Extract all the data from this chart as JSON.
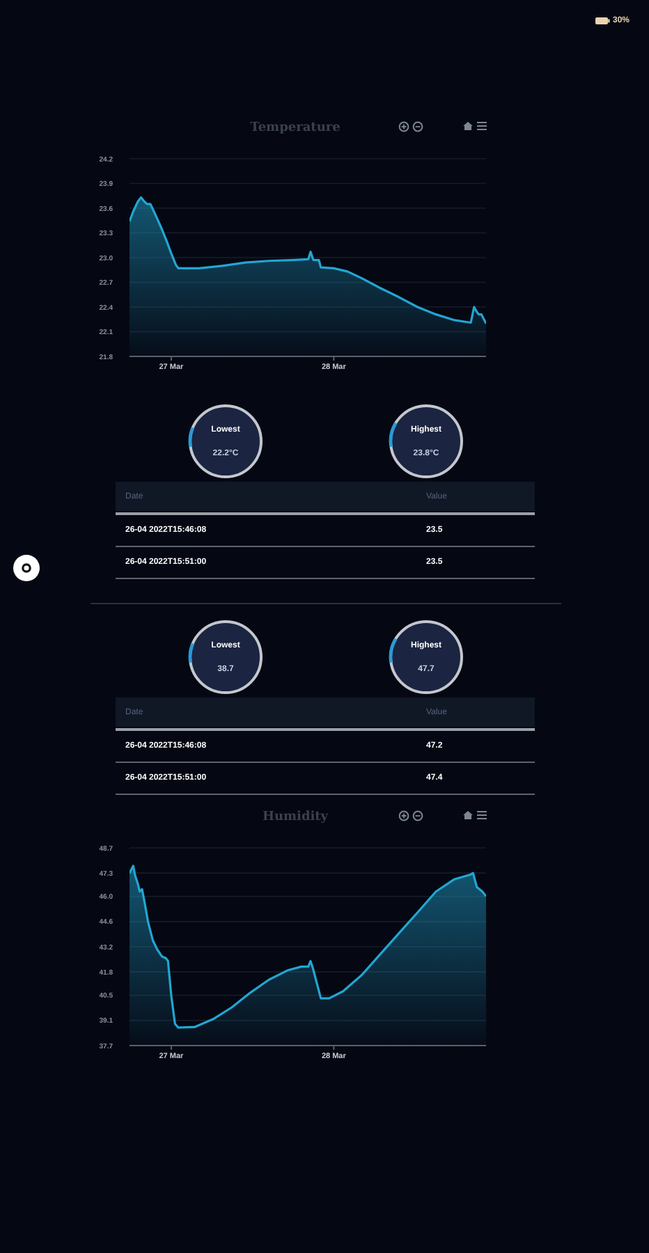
{
  "chart_data": [
    {
      "type": "other",
      "annotations": [
        "30%"
      ]
    },
    {
      "type": "area",
      "title": "Temperature",
      "x": [
        "2022-03-26T17:50",
        "2022-03-26T18:23",
        "2022-03-26T19:04",
        "2022-03-26T19:32",
        "2022-03-26T20:01",
        "2022-03-26T20:26",
        "2022-03-26T20:55",
        "2022-03-26T21:16",
        "2022-03-26T21:56",
        "2022-03-26T22:38",
        "2022-03-26T23:19",
        "2022-03-27T00:00",
        "2022-03-27T00:41",
        "2022-03-27T01:02",
        "2022-03-27T04:07",
        "2022-03-27T07:33",
        "2022-03-27T10:58",
        "2022-03-27T14:24",
        "2022-03-27T17:50",
        "2022-03-27T20:14",
        "2022-03-27T20:34",
        "2022-03-27T20:59",
        "2022-03-27T21:48",
        "2022-03-27T22:05",
        "2022-03-28T00:00",
        "2022-03-28T02:03",
        "2022-03-28T04:07",
        "2022-03-28T06:51",
        "2022-03-28T09:36",
        "2022-03-28T12:21",
        "2022-03-28T15:05",
        "2022-03-28T17:50",
        "2022-03-28T20:14",
        "2022-03-28T20:43",
        "2022-03-28T21:07",
        "2022-03-28T21:24",
        "2022-03-28T21:48",
        "2022-03-28T22:29"
      ],
      "values": [
        23.44,
        23.56,
        23.68,
        23.73,
        23.68,
        23.65,
        23.65,
        23.59,
        23.47,
        23.34,
        23.2,
        23.05,
        22.91,
        22.87,
        22.87,
        22.9,
        22.94,
        22.96,
        22.97,
        22.98,
        23.07,
        22.97,
        22.97,
        22.88,
        22.87,
        22.83,
        22.75,
        22.63,
        22.52,
        22.4,
        22.31,
        22.24,
        22.21,
        22.4,
        22.34,
        22.31,
        22.31,
        22.2
      ],
      "color": "#22a6d2",
      "xlim": [
        "2022-03-26T17:50",
        "2022-03-28T22:29"
      ],
      "xticks": [
        {
          "value": "2022-03-27",
          "label": "27 Mar"
        },
        {
          "value": "2022-03-28",
          "label": "28 Mar"
        }
      ],
      "ylim": [
        21.8,
        24.2
      ],
      "yticks": [
        21.8,
        22.1,
        22.4,
        22.7,
        {
          "value": 23,
          "label": "23.0"
        },
        23.3,
        23.6,
        23.9,
        24.2
      ],
      "grid": "y"
    },
    {
      "type": "other",
      "annotations": [
        "Lowest",
        "22.2°C",
        "Highest",
        "23.8°C",
        "Date",
        "Value",
        "26-04 2022T15:46:08",
        "23.5",
        "26-04 2022T15:51:00",
        "23.5"
      ]
    },
    {
      "type": "other",
      "annotations": [
        "Lowest",
        "38.7",
        "Highest",
        "47.7",
        "Date",
        "Value",
        "26-04 2022T15:46:08",
        "47.2",
        "26-04 2022T15:51:00",
        "47.4"
      ]
    },
    {
      "type": "area",
      "title": "Humidity",
      "x": [
        "2022-03-26T17:50",
        "2022-03-26T18:23",
        "2022-03-26T18:39",
        "2022-03-26T19:04",
        "2022-03-26T19:20",
        "2022-03-26T19:41",
        "2022-03-26T20:01",
        "2022-03-26T20:34",
        "2022-03-26T21:16",
        "2022-03-26T21:56",
        "2022-03-26T22:38",
        "2022-03-26T23:11",
        "2022-03-26T23:31",
        "2022-03-27T00:00",
        "2022-03-27T00:33",
        "2022-03-27T01:02",
        "2022-03-27T03:26",
        "2022-03-27T06:10",
        "2022-03-27T08:55",
        "2022-03-27T11:40",
        "2022-03-27T14:24",
        "2022-03-27T17:09",
        "2022-03-27T19:12",
        "2022-03-27T20:14",
        "2022-03-27T20:34",
        "2022-03-27T20:55",
        "2022-03-27T22:05",
        "2022-03-27T23:19",
        "2022-03-28T01:22",
        "2022-03-28T04:07",
        "2022-03-28T06:51",
        "2022-03-28T09:36",
        "2022-03-28T12:21",
        "2022-03-28T15:05",
        "2022-03-28T17:50",
        "2022-03-28T20:14",
        "2022-03-28T20:34",
        "2022-03-28T21:07",
        "2022-03-28T21:56",
        "2022-03-28T22:29"
      ],
      "values": [
        47.3,
        47.7,
        47.17,
        46.7,
        46.27,
        46.4,
        45.75,
        44.59,
        43.56,
        43.04,
        42.65,
        42.57,
        42.4,
        40.46,
        38.91,
        38.7,
        38.73,
        39.17,
        39.82,
        40.64,
        41.36,
        41.88,
        42.09,
        42.09,
        42.4,
        42.0,
        40.33,
        40.33,
        40.72,
        41.62,
        42.78,
        43.94,
        45.1,
        46.27,
        46.96,
        47.22,
        47.3,
        46.52,
        46.27,
        46.01
      ],
      "color": "#22a6d2",
      "xlim": [
        "2022-03-26T17:50",
        "2022-03-28T22:29"
      ],
      "xticks": [
        {
          "value": "2022-03-27",
          "label": "27 Mar"
        },
        {
          "value": "2022-03-28",
          "label": "28 Mar"
        }
      ],
      "ylim": [
        37.7,
        48.7
      ],
      "yticks": [
        37.7,
        39.1,
        40.5,
        41.8,
        43.2,
        44.6,
        {
          "value": 46,
          "label": "46.0"
        },
        47.3,
        48.7
      ],
      "grid": "y"
    }
  ]
}
